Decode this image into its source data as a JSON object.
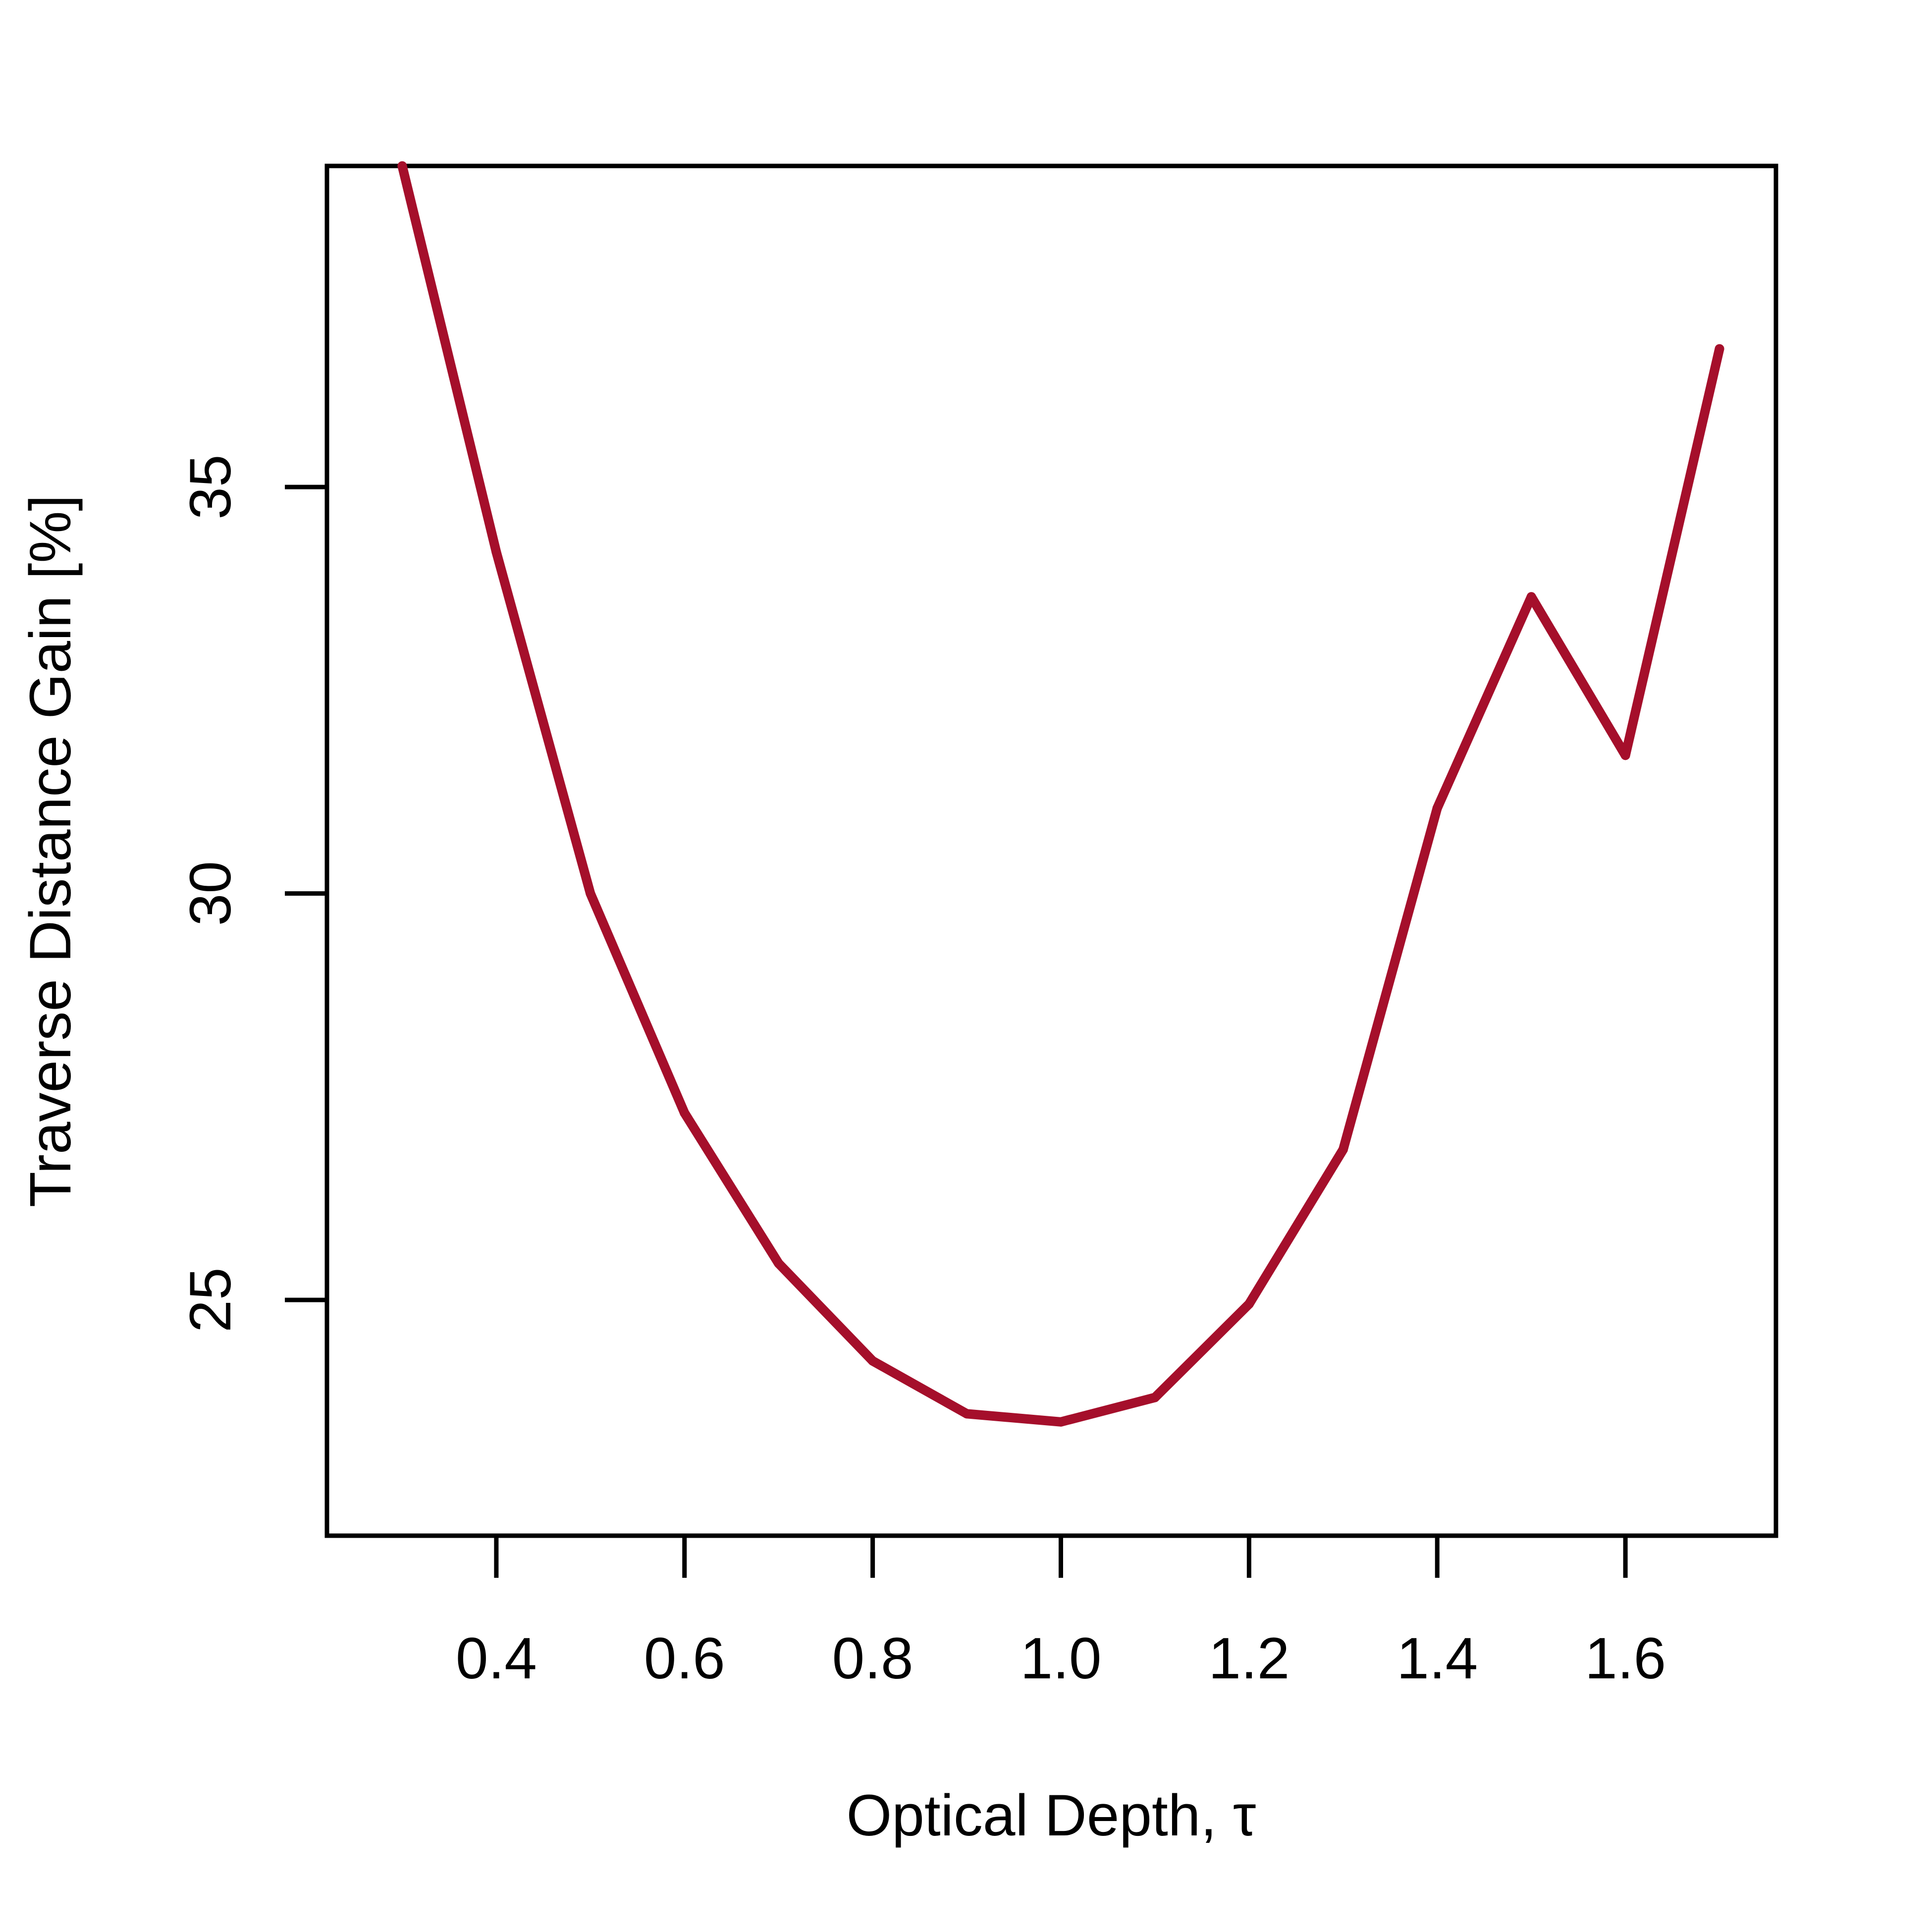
{
  "chart_data": {
    "type": "line",
    "title": "",
    "xlabel": "Optical Depth, τ",
    "ylabel": "Traverse Distance Gain [%]",
    "xlim": [
      0.22,
      1.76
    ],
    "ylim": [
      22.1,
      38.95
    ],
    "x_ticks": [
      {
        "value": 0.4,
        "label": "0.4"
      },
      {
        "value": 0.6,
        "label": "0.6"
      },
      {
        "value": 0.8,
        "label": "0.8"
      },
      {
        "value": 1.0,
        "label": "1.0"
      },
      {
        "value": 1.2,
        "label": "1.2"
      },
      {
        "value": 1.4,
        "label": "1.4"
      },
      {
        "value": 1.6,
        "label": "1.6"
      }
    ],
    "y_ticks": [
      {
        "value": 25,
        "label": "25"
      },
      {
        "value": 30,
        "label": "30"
      },
      {
        "value": 35,
        "label": "35"
      }
    ],
    "grid": false,
    "legend": "none",
    "series": [
      {
        "color": "#A50F2B",
        "x": [
          0.3,
          0.4,
          0.5,
          0.6,
          0.7,
          0.8,
          0.9,
          1.0,
          1.1,
          1.2,
          1.3,
          1.4,
          1.5,
          1.6,
          1.7
        ],
        "y": [
          38.95,
          34.2,
          30.0,
          27.3,
          25.45,
          24.25,
          23.6,
          23.5,
          23.8,
          24.95,
          26.85,
          31.05,
          33.65,
          31.7,
          36.7
        ]
      }
    ]
  }
}
